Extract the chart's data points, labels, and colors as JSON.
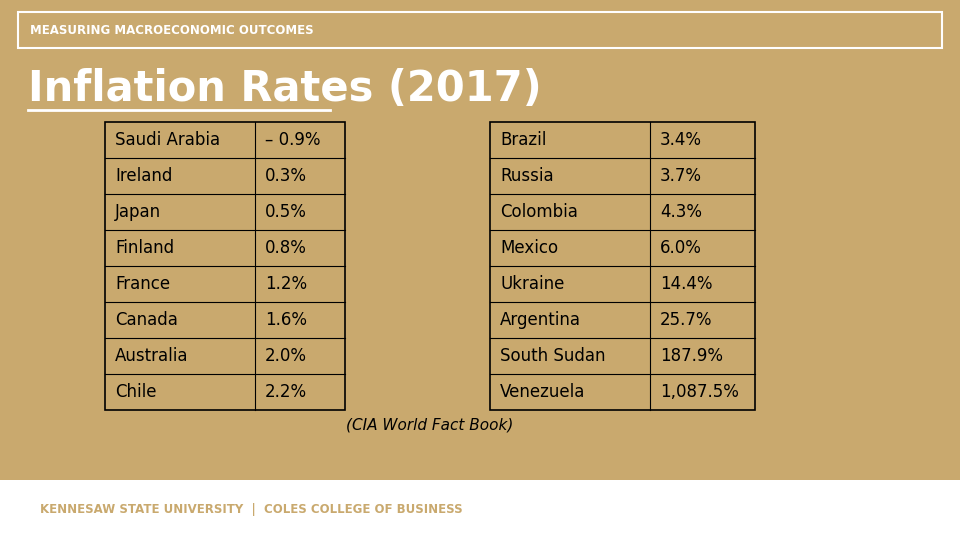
{
  "bg_color": "#C9A96E",
  "footer_bg_color": "#FFFFFF",
  "header_text": "MEASURING MACROECONOMIC OUTCOMES",
  "title": "Inflation Rates (2017)",
  "subtitle": "(CIA World Fact Book)",
  "footer_text": "KENNESAW STATE UNIVERSITY  |  COLES COLLEGE OF BUSINESS",
  "footer_color": "#C9A96E",
  "table1": [
    [
      "Saudi Arabia",
      "– 0.9%"
    ],
    [
      "Ireland",
      "0.3%"
    ],
    [
      "Japan",
      "0.5%"
    ],
    [
      "Finland",
      "0.8%"
    ],
    [
      "France",
      "1.2%"
    ],
    [
      "Canada",
      "1.6%"
    ],
    [
      "Australia",
      "2.0%"
    ],
    [
      "Chile",
      "2.2%"
    ]
  ],
  "table2": [
    [
      "Brazil",
      "3.4%"
    ],
    [
      "Russia",
      "3.7%"
    ],
    [
      "Colombia",
      "4.3%"
    ],
    [
      "Mexico",
      "6.0%"
    ],
    [
      "Ukraine",
      "14.4%"
    ],
    [
      "Argentina",
      "25.7%"
    ],
    [
      "South Sudan",
      "187.9%"
    ],
    [
      "Venezuela",
      "1,087.5%"
    ]
  ],
  "table_border_color": "#000000",
  "text_color": "#000000",
  "header_box_border": "#FFFFFF",
  "title_color": "#FFFFFF",
  "header_text_color": "#FFFFFF"
}
